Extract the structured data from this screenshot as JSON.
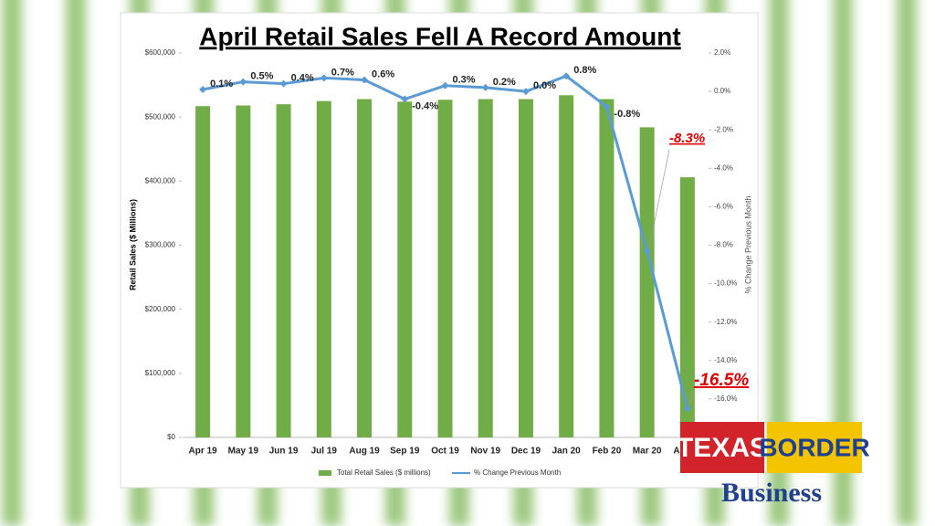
{
  "chart_data": {
    "type": "bar",
    "title": "April Retail Sales Fell A Record Amount",
    "y_label": "Retail Sales ($ Millions)",
    "y2_label": "% Change Previous Month",
    "categories": [
      "Apr 19",
      "May 19",
      "Jun 19",
      "Jul 19",
      "Aug 19",
      "Sep 19",
      "Oct 19",
      "Nov 19",
      "Dec 19",
      "Jan 20",
      "Feb 20",
      "Mar 20",
      "Apr 20"
    ],
    "series": [
      {
        "name": "Total Retail Sales ($ millions)",
        "color": "#70ad47",
        "type": "bar",
        "values": [
          517000,
          518000,
          520000,
          525000,
          528000,
          524000,
          527000,
          528000,
          528000,
          534000,
          528000,
          484000,
          406000
        ]
      },
      {
        "name": "% Change Previous Month",
        "color": "#5b9bd5",
        "type": "line",
        "axis": "y2",
        "values": [
          0.1,
          0.5,
          0.4,
          0.7,
          0.6,
          -0.4,
          0.3,
          0.2,
          0.0,
          0.8,
          -0.8,
          -8.3,
          -16.5
        ],
        "value_labels": [
          "0.1%",
          "0.5%",
          "0.4%",
          "0.7%",
          "0.6%",
          "-0.4%",
          "0.3%",
          "0.2%",
          "0.0%",
          "0.8%",
          "-0.8%",
          "-8.3%",
          "-16.5%"
        ]
      }
    ],
    "ylim": [
      0,
      600000
    ],
    "yticks": [
      {
        "value": 0,
        "label": "$0"
      },
      {
        "value": 100000,
        "label": "$100,000"
      },
      {
        "value": 200000,
        "label": "$200,000"
      },
      {
        "value": 300000,
        "label": "$300,000"
      },
      {
        "value": 400000,
        "label": "$400,000"
      },
      {
        "value": 500000,
        "label": "$500,000"
      },
      {
        "value": 600000,
        "label": "$600,000"
      }
    ],
    "y2lim": [
      -18,
      2
    ],
    "y2ticks": [
      {
        "value": 2,
        "label": "2.0%"
      },
      {
        "value": 0,
        "label": "0.0%"
      },
      {
        "value": -2,
        "label": "-2.0%"
      },
      {
        "value": -4,
        "label": "-4.0%"
      },
      {
        "value": -6,
        "label": "-6.0%"
      },
      {
        "value": -8,
        "label": "-8.0%"
      },
      {
        "value": -10,
        "label": "-10.0%"
      },
      {
        "value": -12,
        "label": "-12.0%"
      },
      {
        "value": -14,
        "label": "-14.0%"
      },
      {
        "value": -16,
        "label": "-16.0%"
      }
    ],
    "legend": "bottom"
  },
  "logo": {
    "line1": "TEXAS",
    "line2": "BORDER",
    "line3": "Business"
  }
}
